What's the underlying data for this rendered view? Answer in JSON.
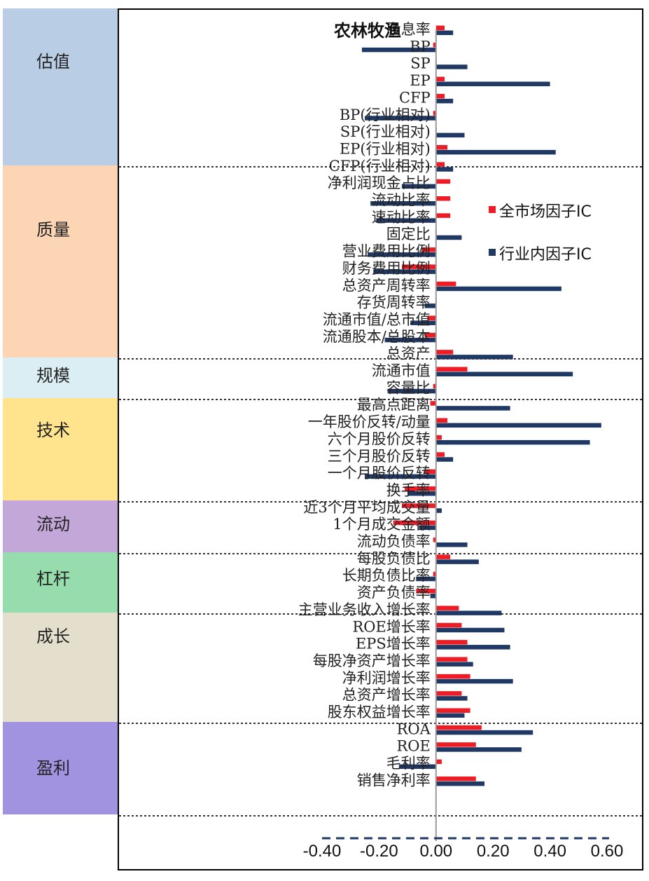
{
  "categories": [
    {
      "label": "估值",
      "color": "#b9cde5"
    },
    {
      "label": "质量",
      "color": "#fcd5b5"
    },
    {
      "label": "规模",
      "color": "#dbeef4"
    },
    {
      "label": "技术",
      "color": "#ffe38d"
    },
    {
      "label": "流动",
      "color": "#c3a7d8"
    },
    {
      "label": "杠杆",
      "color": "#96dcac"
    },
    {
      "label": "成长",
      "color": "#e3dfcc"
    },
    {
      "label": "盈利",
      "color": "#a293e0"
    }
  ],
  "chart_data": {
    "type": "bar",
    "orientation": "horizontal",
    "title": "农林牧渔",
    "xlim": [
      -0.4,
      0.6
    ],
    "xticks": [
      "-0.40",
      "-0.20",
      "0.00",
      "0.20",
      "0.40",
      "0.60"
    ],
    "categories": [
      "股息率",
      "BP",
      "SP",
      "EP",
      "CFP",
      "BP(行业相对)",
      "SP(行业相对)",
      "EP(行业相对)",
      "CFP(行业相对)",
      "净利润现金占比",
      "流动比率",
      "速动比率",
      "固定比",
      "营业费用比例",
      "财务费用比例",
      "总资产周转率",
      "存货周转率",
      "流通市值/总市值",
      "流通股本/总股本",
      "总资产",
      "流通市值",
      "容量比",
      "最高点距离",
      "一年股价反转/动量",
      "六个月股价反转",
      "三个月股价反转",
      "一个月股价反转",
      "换手率",
      "近3个月平均成交量",
      "1个月成交金额",
      "流动负债率",
      "每股负债比",
      "长期负债比率",
      "资产负债率",
      "主营业务收入增长率",
      "ROE增长率",
      "EPS增长率",
      "每股净资产增长率",
      "净利润增长率",
      "总资产增长率",
      "股东权益增长率",
      "ROA",
      "ROE",
      "毛利率",
      "销售净利率"
    ],
    "series": [
      {
        "name": "全市场因子IC",
        "color": "#ee1c25",
        "values": [
          0.03,
          -0.01,
          0.0,
          0.03,
          0.03,
          -0.01,
          0.0,
          0.04,
          0.03,
          0.05,
          0.05,
          0.05,
          0.0,
          -0.05,
          -0.12,
          0.07,
          0.0,
          -0.03,
          -0.04,
          0.06,
          0.11,
          -0.01,
          -0.02,
          0.04,
          0.02,
          0.03,
          -0.04,
          -0.11,
          -0.12,
          -0.15,
          -0.01,
          0.05,
          -0.01,
          -0.07,
          0.08,
          0.09,
          0.11,
          0.11,
          0.12,
          0.09,
          0.12,
          0.16,
          0.14,
          0.02,
          0.14
        ]
      },
      {
        "name": "行业内因子IC",
        "color": "#1f3864",
        "values": [
          0.06,
          -0.26,
          0.11,
          0.4,
          0.06,
          -0.25,
          0.1,
          0.42,
          0.06,
          -0.12,
          -0.23,
          -0.21,
          0.09,
          -0.24,
          -0.22,
          0.44,
          -0.04,
          -0.09,
          -0.18,
          0.27,
          0.48,
          -0.17,
          0.26,
          0.58,
          0.54,
          0.06,
          -0.25,
          -0.1,
          0.02,
          -0.06,
          0.11,
          0.15,
          -0.07,
          -0.02,
          0.23,
          0.24,
          0.26,
          0.13,
          0.27,
          0.11,
          0.1,
          0.34,
          0.3,
          -0.13,
          0.17
        ]
      }
    ],
    "legend": [
      {
        "name": "全市场因子IC",
        "color": "#ee1c25"
      },
      {
        "name": "行业内因子IC",
        "color": "#1f3864"
      }
    ]
  }
}
